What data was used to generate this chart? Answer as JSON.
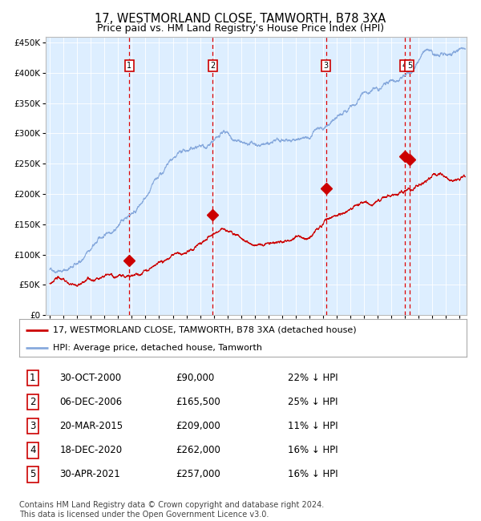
{
  "title": "17, WESTMORLAND CLOSE, TAMWORTH, B78 3XA",
  "subtitle": "Price paid vs. HM Land Registry's House Price Index (HPI)",
  "title_fontsize": 10.5,
  "subtitle_fontsize": 9,
  "background_color": "#ffffff",
  "plot_bg_color": "#ddeeff",
  "grid_color": "#ffffff",
  "hpi_color": "#88aadd",
  "price_color": "#cc0000",
  "marker_color": "#cc0000",
  "dashed_line_color": "#dd0000",
  "ylim": [
    0,
    460000
  ],
  "yticks": [
    0,
    50000,
    100000,
    150000,
    200000,
    250000,
    300000,
    350000,
    400000,
    450000
  ],
  "ytick_labels": [
    "£0",
    "£50K",
    "£100K",
    "£150K",
    "£200K",
    "£250K",
    "£300K",
    "£350K",
    "£400K",
    "£450K"
  ],
  "xlim_start": 1994.7,
  "xlim_end": 2025.5,
  "xticks": [
    1995,
    1996,
    1997,
    1998,
    1999,
    2000,
    2001,
    2002,
    2003,
    2004,
    2005,
    2006,
    2007,
    2008,
    2009,
    2010,
    2011,
    2012,
    2013,
    2014,
    2015,
    2016,
    2017,
    2018,
    2019,
    2020,
    2021,
    2022,
    2023,
    2024,
    2025
  ],
  "transactions": [
    {
      "label": "1",
      "date": 2000.83,
      "price": 90000
    },
    {
      "label": "2",
      "date": 2006.93,
      "price": 165500
    },
    {
      "label": "3",
      "date": 2015.22,
      "price": 209000
    },
    {
      "label": "4",
      "date": 2020.97,
      "price": 262000
    },
    {
      "label": "5",
      "date": 2021.33,
      "price": 257000
    }
  ],
  "legend_entries": [
    {
      "label": "17, WESTMORLAND CLOSE, TAMWORTH, B78 3XA (detached house)",
      "color": "#cc0000",
      "lw": 2
    },
    {
      "label": "HPI: Average price, detached house, Tamworth",
      "color": "#88aadd",
      "lw": 2
    }
  ],
  "table_rows": [
    [
      "1",
      "30-OCT-2000",
      "£90,000",
      "22% ↓ HPI"
    ],
    [
      "2",
      "06-DEC-2006",
      "£165,500",
      "25% ↓ HPI"
    ],
    [
      "3",
      "20-MAR-2015",
      "£209,000",
      "11% ↓ HPI"
    ],
    [
      "4",
      "18-DEC-2020",
      "£262,000",
      "16% ↓ HPI"
    ],
    [
      "5",
      "30-APR-2021",
      "£257,000",
      "16% ↓ HPI"
    ]
  ],
  "footnote": "Contains HM Land Registry data © Crown copyright and database right 2024.\nThis data is licensed under the Open Government Licence v3.0.",
  "footnote_fontsize": 7
}
